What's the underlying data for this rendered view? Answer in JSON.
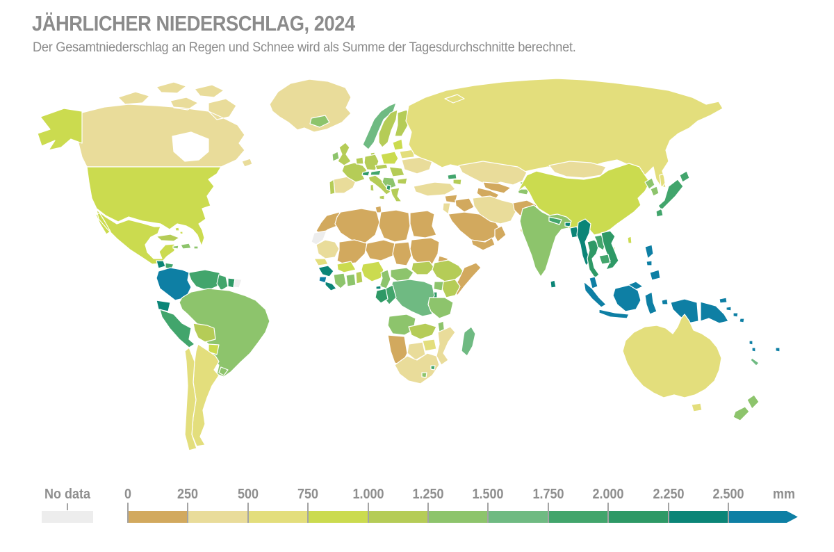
{
  "header": {
    "title": "JÄHRLICHER NIEDERSCHLAG, 2024",
    "subtitle": "Der Gesamtniederschlag an Regen und Schnee wird als Summe der Tagesdurchschnitte berechnet."
  },
  "legend": {
    "no_data_label": "No data",
    "no_data_color": "#ededed",
    "unit_label": "mm",
    "tick_labels": [
      "0",
      "250",
      "500",
      "750",
      "1.000",
      "1.250",
      "1.500",
      "1.750",
      "2.000",
      "2.250",
      "2.500"
    ]
  },
  "chart_data": {
    "type": "heatmap",
    "subtype": "choropleth-world-map",
    "title": "Jährlicher Niederschlag, 2024",
    "unit": "mm",
    "scale_ticks_mm": [
      0,
      250,
      500,
      750,
      1000,
      1250,
      1500,
      1750,
      2000,
      2250,
      2500
    ],
    "scale_open_ended_above_mm": 2500,
    "legend_position": "bottom",
    "bins": [
      {
        "min": 0,
        "max": 250,
        "color": "#d2a95e"
      },
      {
        "min": 250,
        "max": 500,
        "color": "#e9dc9a"
      },
      {
        "min": 500,
        "max": 750,
        "color": "#e3de7c"
      },
      {
        "min": 750,
        "max": 1000,
        "color": "#cbdb4f"
      },
      {
        "min": 1000,
        "max": 1250,
        "color": "#b5cc57"
      },
      {
        "min": 1250,
        "max": 1500,
        "color": "#8dc46c"
      },
      {
        "min": 1500,
        "max": 1750,
        "color": "#6fba82"
      },
      {
        "min": 1750,
        "max": 2000,
        "color": "#42a56c"
      },
      {
        "min": 2000,
        "max": 2250,
        "color": "#2e9966"
      },
      {
        "min": 2250,
        "max": 2500,
        "color": "#0b8577"
      },
      {
        "min": 2500,
        "max": null,
        "color": "#0e7fa4"
      }
    ],
    "countries": [
      {
        "id": "greenland",
        "name": "Greenland",
        "bin": 1
      },
      {
        "id": "canada",
        "name": "Canada",
        "bin": 1
      },
      {
        "id": "alaska",
        "name": "Alaska (USA)",
        "bin": 3
      },
      {
        "id": "usa",
        "name": "United States",
        "bin": 3
      },
      {
        "id": "mexico",
        "name": "Mexico",
        "bin": 3
      },
      {
        "id": "guatemala",
        "name": "Guatemala",
        "bin": 9
      },
      {
        "id": "honduras",
        "name": "Honduras",
        "bin": 7
      },
      {
        "id": "nicaragua",
        "name": "Nicaragua",
        "bin": 8
      },
      {
        "id": "costa-rica",
        "name": "Costa Rica",
        "bin": 9
      },
      {
        "id": "panama",
        "name": "Panama",
        "bin": 8
      },
      {
        "id": "cuba",
        "name": "Cuba",
        "bin": 4
      },
      {
        "id": "jamaica",
        "name": "Jamaica",
        "bin": 5
      },
      {
        "id": "hispaniola",
        "name": "Hispaniola",
        "bin": 5
      },
      {
        "id": "puerto-rico",
        "name": "Puerto Rico",
        "bin": 5
      },
      {
        "id": "bahamas",
        "name": "Bahamas",
        "bin": 3
      },
      {
        "id": "colombia",
        "name": "Colombia",
        "bin": 10
      },
      {
        "id": "venezuela",
        "name": "Venezuela",
        "bin": 7
      },
      {
        "id": "guyana",
        "name": "Guyana",
        "bin": 7
      },
      {
        "id": "suriname",
        "name": "Suriname",
        "bin": 8
      },
      {
        "id": "french-guiana",
        "name": "French Guiana",
        "bin": "no_data"
      },
      {
        "id": "ecuador",
        "name": "Ecuador",
        "bin": 9
      },
      {
        "id": "peru",
        "name": "Peru",
        "bin": 7
      },
      {
        "id": "brazil",
        "name": "Brazil",
        "bin": 5
      },
      {
        "id": "bolivia",
        "name": "Bolivia",
        "bin": 4
      },
      {
        "id": "paraguay",
        "name": "Paraguay",
        "bin": 3
      },
      {
        "id": "uruguay",
        "name": "Uruguay",
        "bin": 5
      },
      {
        "id": "argentina",
        "name": "Argentina",
        "bin": 2
      },
      {
        "id": "chile",
        "name": "Chile",
        "bin": 2
      },
      {
        "id": "iceland",
        "name": "Iceland",
        "bin": 5
      },
      {
        "id": "norway",
        "name": "Norway",
        "bin": 6
      },
      {
        "id": "sweden",
        "name": "Sweden",
        "bin": 4
      },
      {
        "id": "finland",
        "name": "Finland",
        "bin": 4
      },
      {
        "id": "denmark",
        "name": "Denmark",
        "bin": 4
      },
      {
        "id": "united-kingdom",
        "name": "United Kingdom",
        "bin": 4
      },
      {
        "id": "ireland",
        "name": "Ireland",
        "bin": 5
      },
      {
        "id": "portugal",
        "name": "Portugal",
        "bin": 4
      },
      {
        "id": "spain",
        "name": "Spain",
        "bin": 1
      },
      {
        "id": "france",
        "name": "France",
        "bin": 4
      },
      {
        "id": "benelux",
        "name": "Benelux",
        "bin": 4
      },
      {
        "id": "germany",
        "name": "Germany",
        "bin": 4
      },
      {
        "id": "switzerland",
        "name": "Switzerland",
        "bin": 8
      },
      {
        "id": "austria",
        "name": "Austria",
        "bin": 7
      },
      {
        "id": "czech-slovakia",
        "name": "Czechia and Slovakia",
        "bin": 4
      },
      {
        "id": "italy",
        "name": "Italy",
        "bin": 4
      },
      {
        "id": "poland",
        "name": "Poland",
        "bin": 3
      },
      {
        "id": "baltics",
        "name": "Baltic states",
        "bin": 3
      },
      {
        "id": "belarus",
        "name": "Belarus",
        "bin": 2
      },
      {
        "id": "ukraine",
        "name": "Ukraine",
        "bin": 1
      },
      {
        "id": "romania-hungary",
        "name": "Romania and Hungary",
        "bin": 4
      },
      {
        "id": "balkans",
        "name": "Western Balkans",
        "bin": 5
      },
      {
        "id": "albania",
        "name": "Albania",
        "bin": 8
      },
      {
        "id": "greece",
        "name": "Greece",
        "bin": 4
      },
      {
        "id": "bulgaria",
        "name": "Bulgaria",
        "bin": 4
      },
      {
        "id": "turkey",
        "name": "Turkey",
        "bin": 1
      },
      {
        "id": "georgia",
        "name": "Georgia",
        "bin": 7
      },
      {
        "id": "azerbaijan",
        "name": "Azerbaijan and Armenia",
        "bin": 4
      },
      {
        "id": "russia",
        "name": "Russia",
        "bin": 2
      },
      {
        "id": "kazakhstan",
        "name": "Kazakhstan",
        "bin": 1
      },
      {
        "id": "uzbekistan",
        "name": "Uzbekistan",
        "bin": 0
      },
      {
        "id": "turkmenistan",
        "name": "Turkmenistan",
        "bin": 0
      },
      {
        "id": "kyrgyzstan",
        "name": "Kyrgyzstan",
        "bin": 5
      },
      {
        "id": "tajikistan",
        "name": "Tajikistan",
        "bin": 5
      },
      {
        "id": "syria",
        "name": "Syria",
        "bin": 0
      },
      {
        "id": "iraq",
        "name": "Iraq",
        "bin": 0
      },
      {
        "id": "jordan-israel",
        "name": "Jordan and Israel",
        "bin": 1
      },
      {
        "id": "saudi-arabia",
        "name": "Saudi Arabia",
        "bin": 0
      },
      {
        "id": "yemen",
        "name": "Yemen",
        "bin": 0
      },
      {
        "id": "oman",
        "name": "Oman",
        "bin": 0
      },
      {
        "id": "iran",
        "name": "Iran",
        "bin": 1
      },
      {
        "id": "afghanistan",
        "name": "Afghanistan",
        "bin": 0
      },
      {
        "id": "pakistan",
        "name": "Pakistan",
        "bin": 1
      },
      {
        "id": "mongolia",
        "name": "Mongolia",
        "bin": 1
      },
      {
        "id": "china",
        "name": "China",
        "bin": 3
      },
      {
        "id": "taiwan",
        "name": "Taiwan",
        "bin": 3
      },
      {
        "id": "hainan",
        "name": "Hainan",
        "bin": 2
      },
      {
        "id": "north-korea",
        "name": "North Korea",
        "bin": 5
      },
      {
        "id": "south-korea",
        "name": "South Korea",
        "bin": 5
      },
      {
        "id": "japan",
        "name": "Japan",
        "bin": 7
      },
      {
        "id": "india",
        "name": "India",
        "bin": 5
      },
      {
        "id": "nepal",
        "name": "Nepal",
        "bin": 7
      },
      {
        "id": "bhutan",
        "name": "Bhutan",
        "bin": 9
      },
      {
        "id": "bangladesh",
        "name": "Bangladesh",
        "bin": 9
      },
      {
        "id": "sri-lanka",
        "name": "Sri Lanka",
        "bin": 9
      },
      {
        "id": "myanmar",
        "name": "Myanmar",
        "bin": 9
      },
      {
        "id": "thailand",
        "name": "Thailand",
        "bin": 8
      },
      {
        "id": "laos",
        "name": "Laos",
        "bin": 7
      },
      {
        "id": "vietnam",
        "name": "Vietnam",
        "bin": 8
      },
      {
        "id": "cambodia",
        "name": "Cambodia",
        "bin": 7
      },
      {
        "id": "malaysia",
        "name": "Malaysia",
        "bin": 10
      },
      {
        "id": "indonesia",
        "name": "Indonesia",
        "bin": 10
      },
      {
        "id": "philippines",
        "name": "Philippines",
        "bin": 10
      },
      {
        "id": "papua-new-guinea",
        "name": "Papua New Guinea",
        "bin": 10
      },
      {
        "id": "solomon-islands",
        "name": "Solomon Islands",
        "bin": 10
      },
      {
        "id": "vanuatu",
        "name": "Vanuatu",
        "bin": 10
      },
      {
        "id": "fiji",
        "name": "Fiji",
        "bin": 10
      },
      {
        "id": "new-caledonia",
        "name": "New Caledonia",
        "bin": 6
      },
      {
        "id": "australia",
        "name": "Australia",
        "bin": 2
      },
      {
        "id": "new-zealand",
        "name": "New Zealand",
        "bin": 5
      },
      {
        "id": "morocco",
        "name": "Morocco",
        "bin": 0
      },
      {
        "id": "western-sahara",
        "name": "Western Sahara",
        "bin": "no_data"
      },
      {
        "id": "algeria",
        "name": "Algeria",
        "bin": 0
      },
      {
        "id": "tunisia",
        "name": "Tunisia",
        "bin": 0
      },
      {
        "id": "libya",
        "name": "Libya",
        "bin": 0
      },
      {
        "id": "egypt",
        "name": "Egypt",
        "bin": 0
      },
      {
        "id": "mauritania",
        "name": "Mauritania",
        "bin": 1
      },
      {
        "id": "senegal",
        "name": "Senegal",
        "bin": 2
      },
      {
        "id": "mali",
        "name": "Mali",
        "bin": 0
      },
      {
        "id": "burkina-faso",
        "name": "Burkina Faso",
        "bin": 3
      },
      {
        "id": "niger",
        "name": "Niger",
        "bin": 0
      },
      {
        "id": "chad",
        "name": "Chad",
        "bin": 0
      },
      {
        "id": "sudan",
        "name": "Sudan",
        "bin": 0
      },
      {
        "id": "eritrea",
        "name": "Eritrea",
        "bin": 0
      },
      {
        "id": "guinea",
        "name": "Guinea",
        "bin": 9
      },
      {
        "id": "sierra-leone",
        "name": "Sierra Leone",
        "bin": 10
      },
      {
        "id": "liberia",
        "name": "Liberia",
        "bin": 9
      },
      {
        "id": "ivory-coast",
        "name": "Côte d'Ivoire",
        "bin": 5
      },
      {
        "id": "ghana",
        "name": "Ghana",
        "bin": 5
      },
      {
        "id": "togo-benin",
        "name": "Togo and Benin",
        "bin": 4
      },
      {
        "id": "nigeria",
        "name": "Nigeria",
        "bin": 3
      },
      {
        "id": "cameroon",
        "name": "Cameroon",
        "bin": 5
      },
      {
        "id": "central-african-republic",
        "name": "Central African Republic",
        "bin": 5
      },
      {
        "id": "south-sudan",
        "name": "South Sudan",
        "bin": 4
      },
      {
        "id": "ethiopia",
        "name": "Ethiopia",
        "bin": 4
      },
      {
        "id": "somalia",
        "name": "Somalia",
        "bin": 0
      },
      {
        "id": "kenya",
        "name": "Kenya",
        "bin": 4
      },
      {
        "id": "uganda",
        "name": "Uganda",
        "bin": 5
      },
      {
        "id": "rwanda-burundi",
        "name": "Rwanda and Burundi",
        "bin": 8
      },
      {
        "id": "dr-congo",
        "name": "Democratic Republic of Congo",
        "bin": 6
      },
      {
        "id": "congo",
        "name": "Congo",
        "bin": 7
      },
      {
        "id": "gabon",
        "name": "Gabon",
        "bin": 8
      },
      {
        "id": "equatorial-guinea",
        "name": "Equatorial Guinea",
        "bin": 9
      },
      {
        "id": "angola",
        "name": "Angola",
        "bin": 5
      },
      {
        "id": "zambia",
        "name": "Zambia",
        "bin": 4
      },
      {
        "id": "tanzania",
        "name": "Tanzania",
        "bin": 5
      },
      {
        "id": "malawi",
        "name": "Malawi",
        "bin": 5
      },
      {
        "id": "mozambique",
        "name": "Mozambique",
        "bin": 1
      },
      {
        "id": "zimbabwe",
        "name": "Zimbabwe",
        "bin": 2
      },
      {
        "id": "botswana",
        "name": "Botswana",
        "bin": 1
      },
      {
        "id": "namibia",
        "name": "Namibia",
        "bin": 0
      },
      {
        "id": "south-africa",
        "name": "South Africa",
        "bin": 1
      },
      {
        "id": "lesotho",
        "name": "Lesotho",
        "bin": 5
      },
      {
        "id": "eswatini",
        "name": "Eswatini",
        "bin": 7
      },
      {
        "id": "madagascar",
        "name": "Madagascar",
        "bin": 6
      }
    ]
  }
}
